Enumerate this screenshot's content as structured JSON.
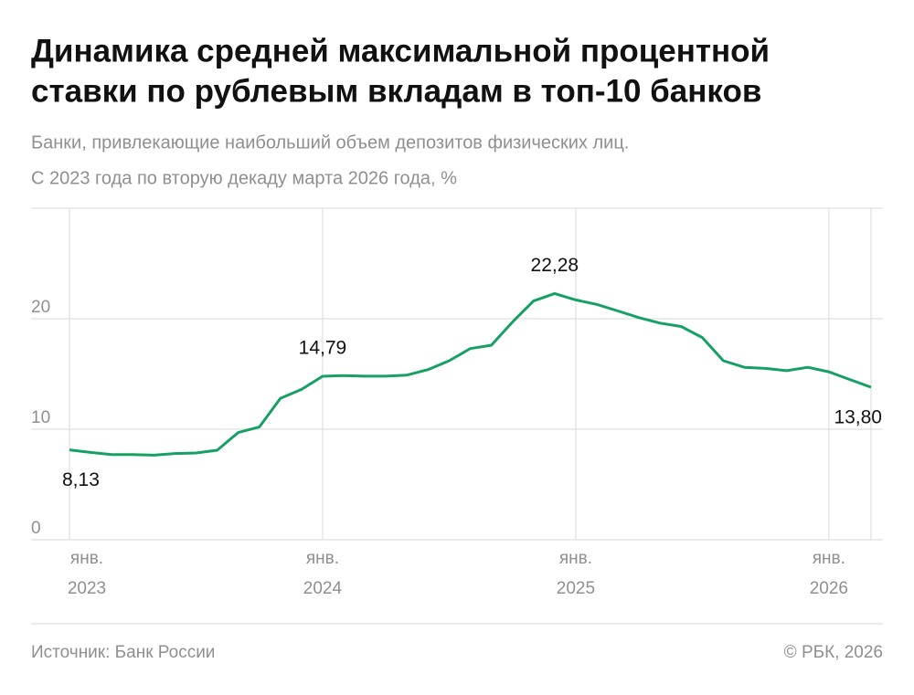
{
  "chart_data": {
    "type": "line",
    "title": [
      "Динамика средней максимальной процентной",
      "ставки по рублевым вкладам в топ-10 банков"
    ],
    "subtitle": [
      "Банки, привлекающие наибольший объем депозитов физических лиц.",
      "С 2023 года по вторую декаду марта 2026 года, %"
    ],
    "source": "Источник: Банк России",
    "credit": "© РБК, 2026",
    "color": "#17a064",
    "x": [
      "2023-01",
      "2023-02",
      "2023-03",
      "2023-04",
      "2023-05",
      "2023-06",
      "2023-07",
      "2023-08",
      "2023-09",
      "2023-10",
      "2023-11",
      "2023-12",
      "2024-01",
      "2024-02",
      "2024-03",
      "2024-04",
      "2024-05",
      "2024-06",
      "2024-07",
      "2024-08",
      "2024-09",
      "2024-10",
      "2024-11",
      "2024-12",
      "2025-01",
      "2025-02",
      "2025-03",
      "2025-04",
      "2025-05",
      "2025-06",
      "2025-07",
      "2025-08",
      "2025-09",
      "2025-10",
      "2025-11",
      "2025-12",
      "2026-01",
      "2026-02",
      "2026-03"
    ],
    "values": [
      8.13,
      7.9,
      7.7,
      7.7,
      7.65,
      7.8,
      7.85,
      8.1,
      9.7,
      10.2,
      12.8,
      13.6,
      14.79,
      14.85,
      14.8,
      14.8,
      14.9,
      15.4,
      16.2,
      17.3,
      17.6,
      19.7,
      21.6,
      22.28,
      21.7,
      21.3,
      20.7,
      20.1,
      19.6,
      19.3,
      18.3,
      16.2,
      15.6,
      15.5,
      15.3,
      15.6,
      15.2,
      14.5,
      13.8
    ],
    "value_labels": [
      "8,13",
      null,
      null,
      null,
      null,
      null,
      null,
      null,
      null,
      null,
      null,
      null,
      "14,79",
      null,
      null,
      null,
      null,
      null,
      null,
      null,
      null,
      null,
      null,
      "22,28",
      null,
      null,
      null,
      null,
      null,
      null,
      null,
      null,
      null,
      null,
      null,
      null,
      null,
      null,
      "13,80"
    ],
    "xlim": [
      "2023-01",
      "2026-03"
    ],
    "xticks": [
      {
        "value": "2023-01",
        "label": [
          "янв.",
          "2023"
        ]
      },
      {
        "value": "2024-01",
        "label": [
          "янв.",
          "2024"
        ]
      },
      {
        "value": "2025-01",
        "label": [
          "янв.",
          "2025"
        ]
      },
      {
        "value": "2026-01",
        "label": [
          "янв.",
          "2026"
        ]
      }
    ],
    "ylim": [
      0,
      30
    ],
    "yticks": [
      0,
      10,
      20
    ],
    "grid": true
  }
}
